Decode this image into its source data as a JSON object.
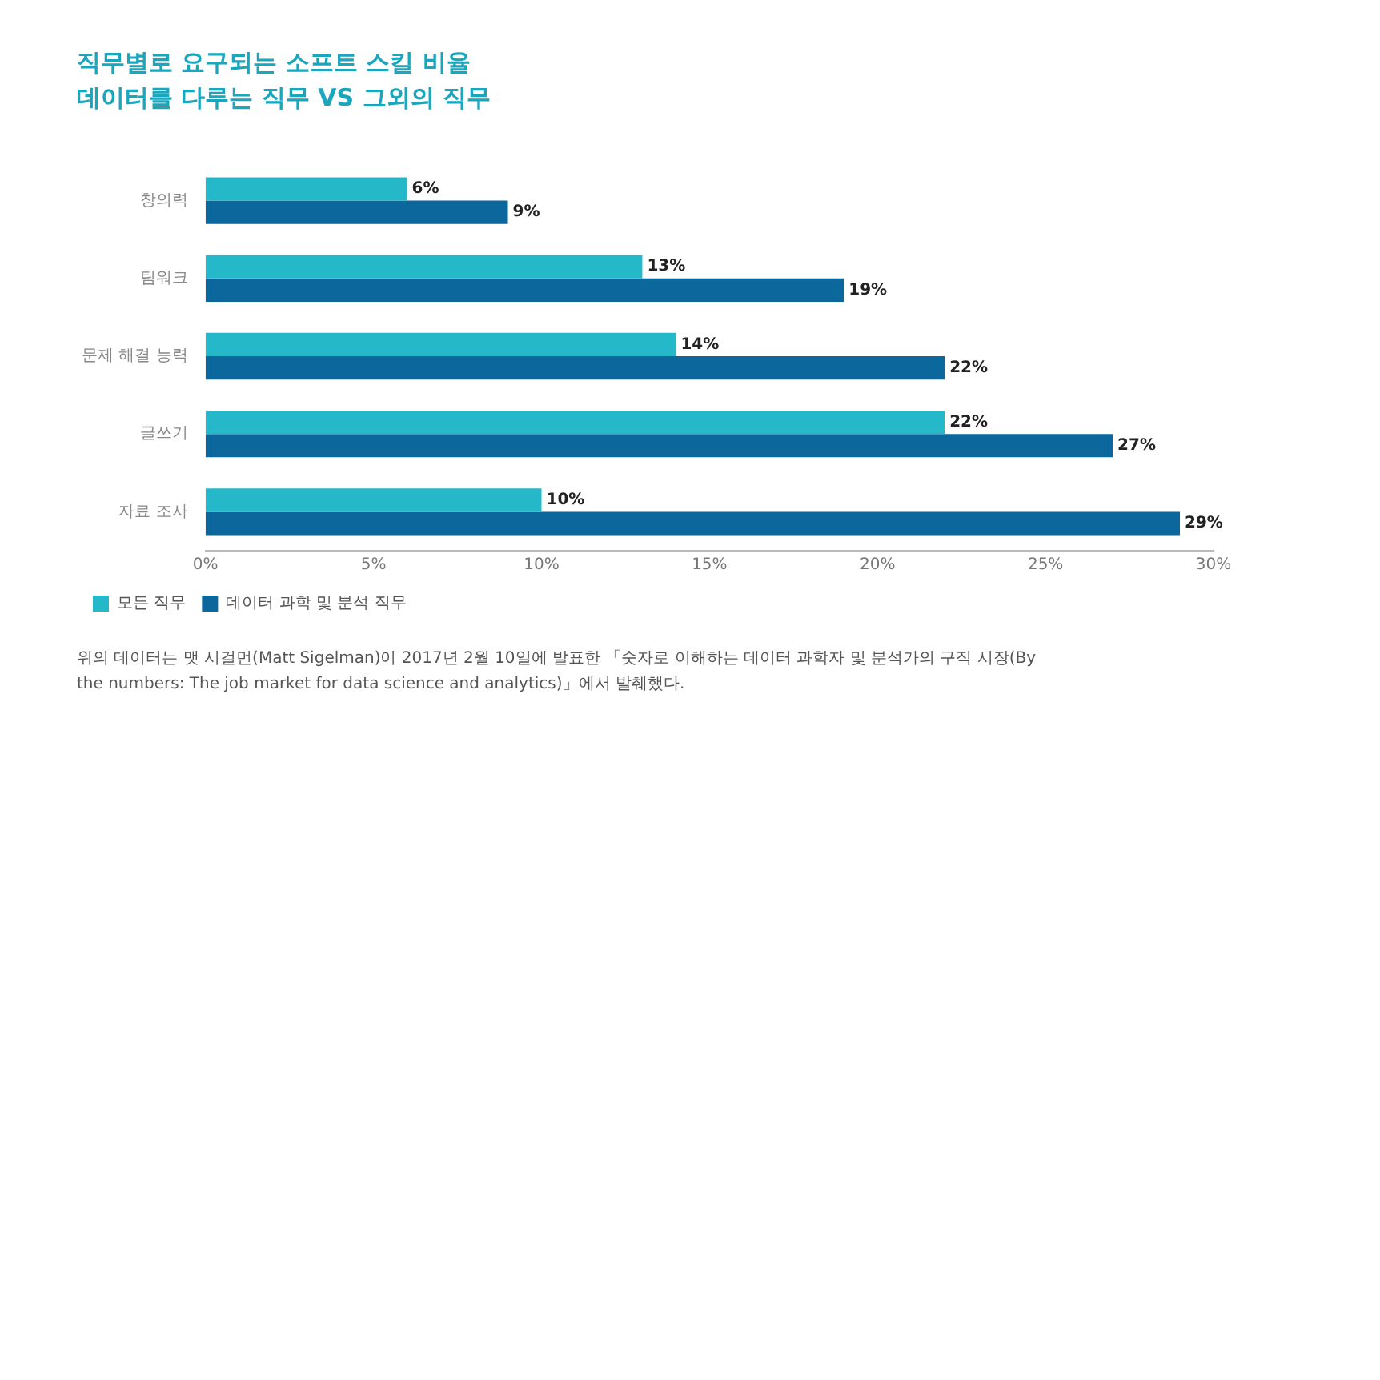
{
  "chart_data": {
    "type": "bar",
    "orientation": "horizontal",
    "title": "직무별로 요구되는 소프트 스킬 비율",
    "subtitle": "데이터를 다루는 직무 VS 그외의 직무",
    "categories": [
      "창의력",
      "팀워크",
      "문제 해결 능력",
      "글쓰기",
      "자료 조사"
    ],
    "series": [
      {
        "name": "모든 직무",
        "color": "#25b8c9",
        "values": [
          6,
          13,
          14,
          22,
          10
        ],
        "value_labels": [
          "6%",
          "13%",
          "14%",
          "22%",
          "10%"
        ]
      },
      {
        "name": "데이터 과학 및 분석 직무",
        "color": "#0b679c",
        "values": [
          9,
          19,
          22,
          27,
          29
        ],
        "value_labels": [
          "9%",
          "19%",
          "22%",
          "27%",
          "29%"
        ]
      }
    ],
    "xlim": [
      0,
      30
    ],
    "xticks": [
      {
        "value": 0,
        "label": "0%"
      },
      {
        "value": 5,
        "label": "5%"
      },
      {
        "value": 10,
        "label": "10%"
      },
      {
        "value": 15,
        "label": "15%"
      },
      {
        "value": 20,
        "label": "20%"
      },
      {
        "value": 25,
        "label": "25%"
      },
      {
        "value": 30,
        "label": "30%"
      }
    ],
    "grid": false,
    "legend": "bottom left",
    "annotations": [
      "위의 데이터는 맷 시걸먼(Matt Sigelman)이 2017년 2월 10일에 발표한 「숫자로 이해하는 데이터 과학자 및 분석가의 구직 시장(By the numbers: The job market for data science and analytics)」에서 발췌했다."
    ]
  }
}
